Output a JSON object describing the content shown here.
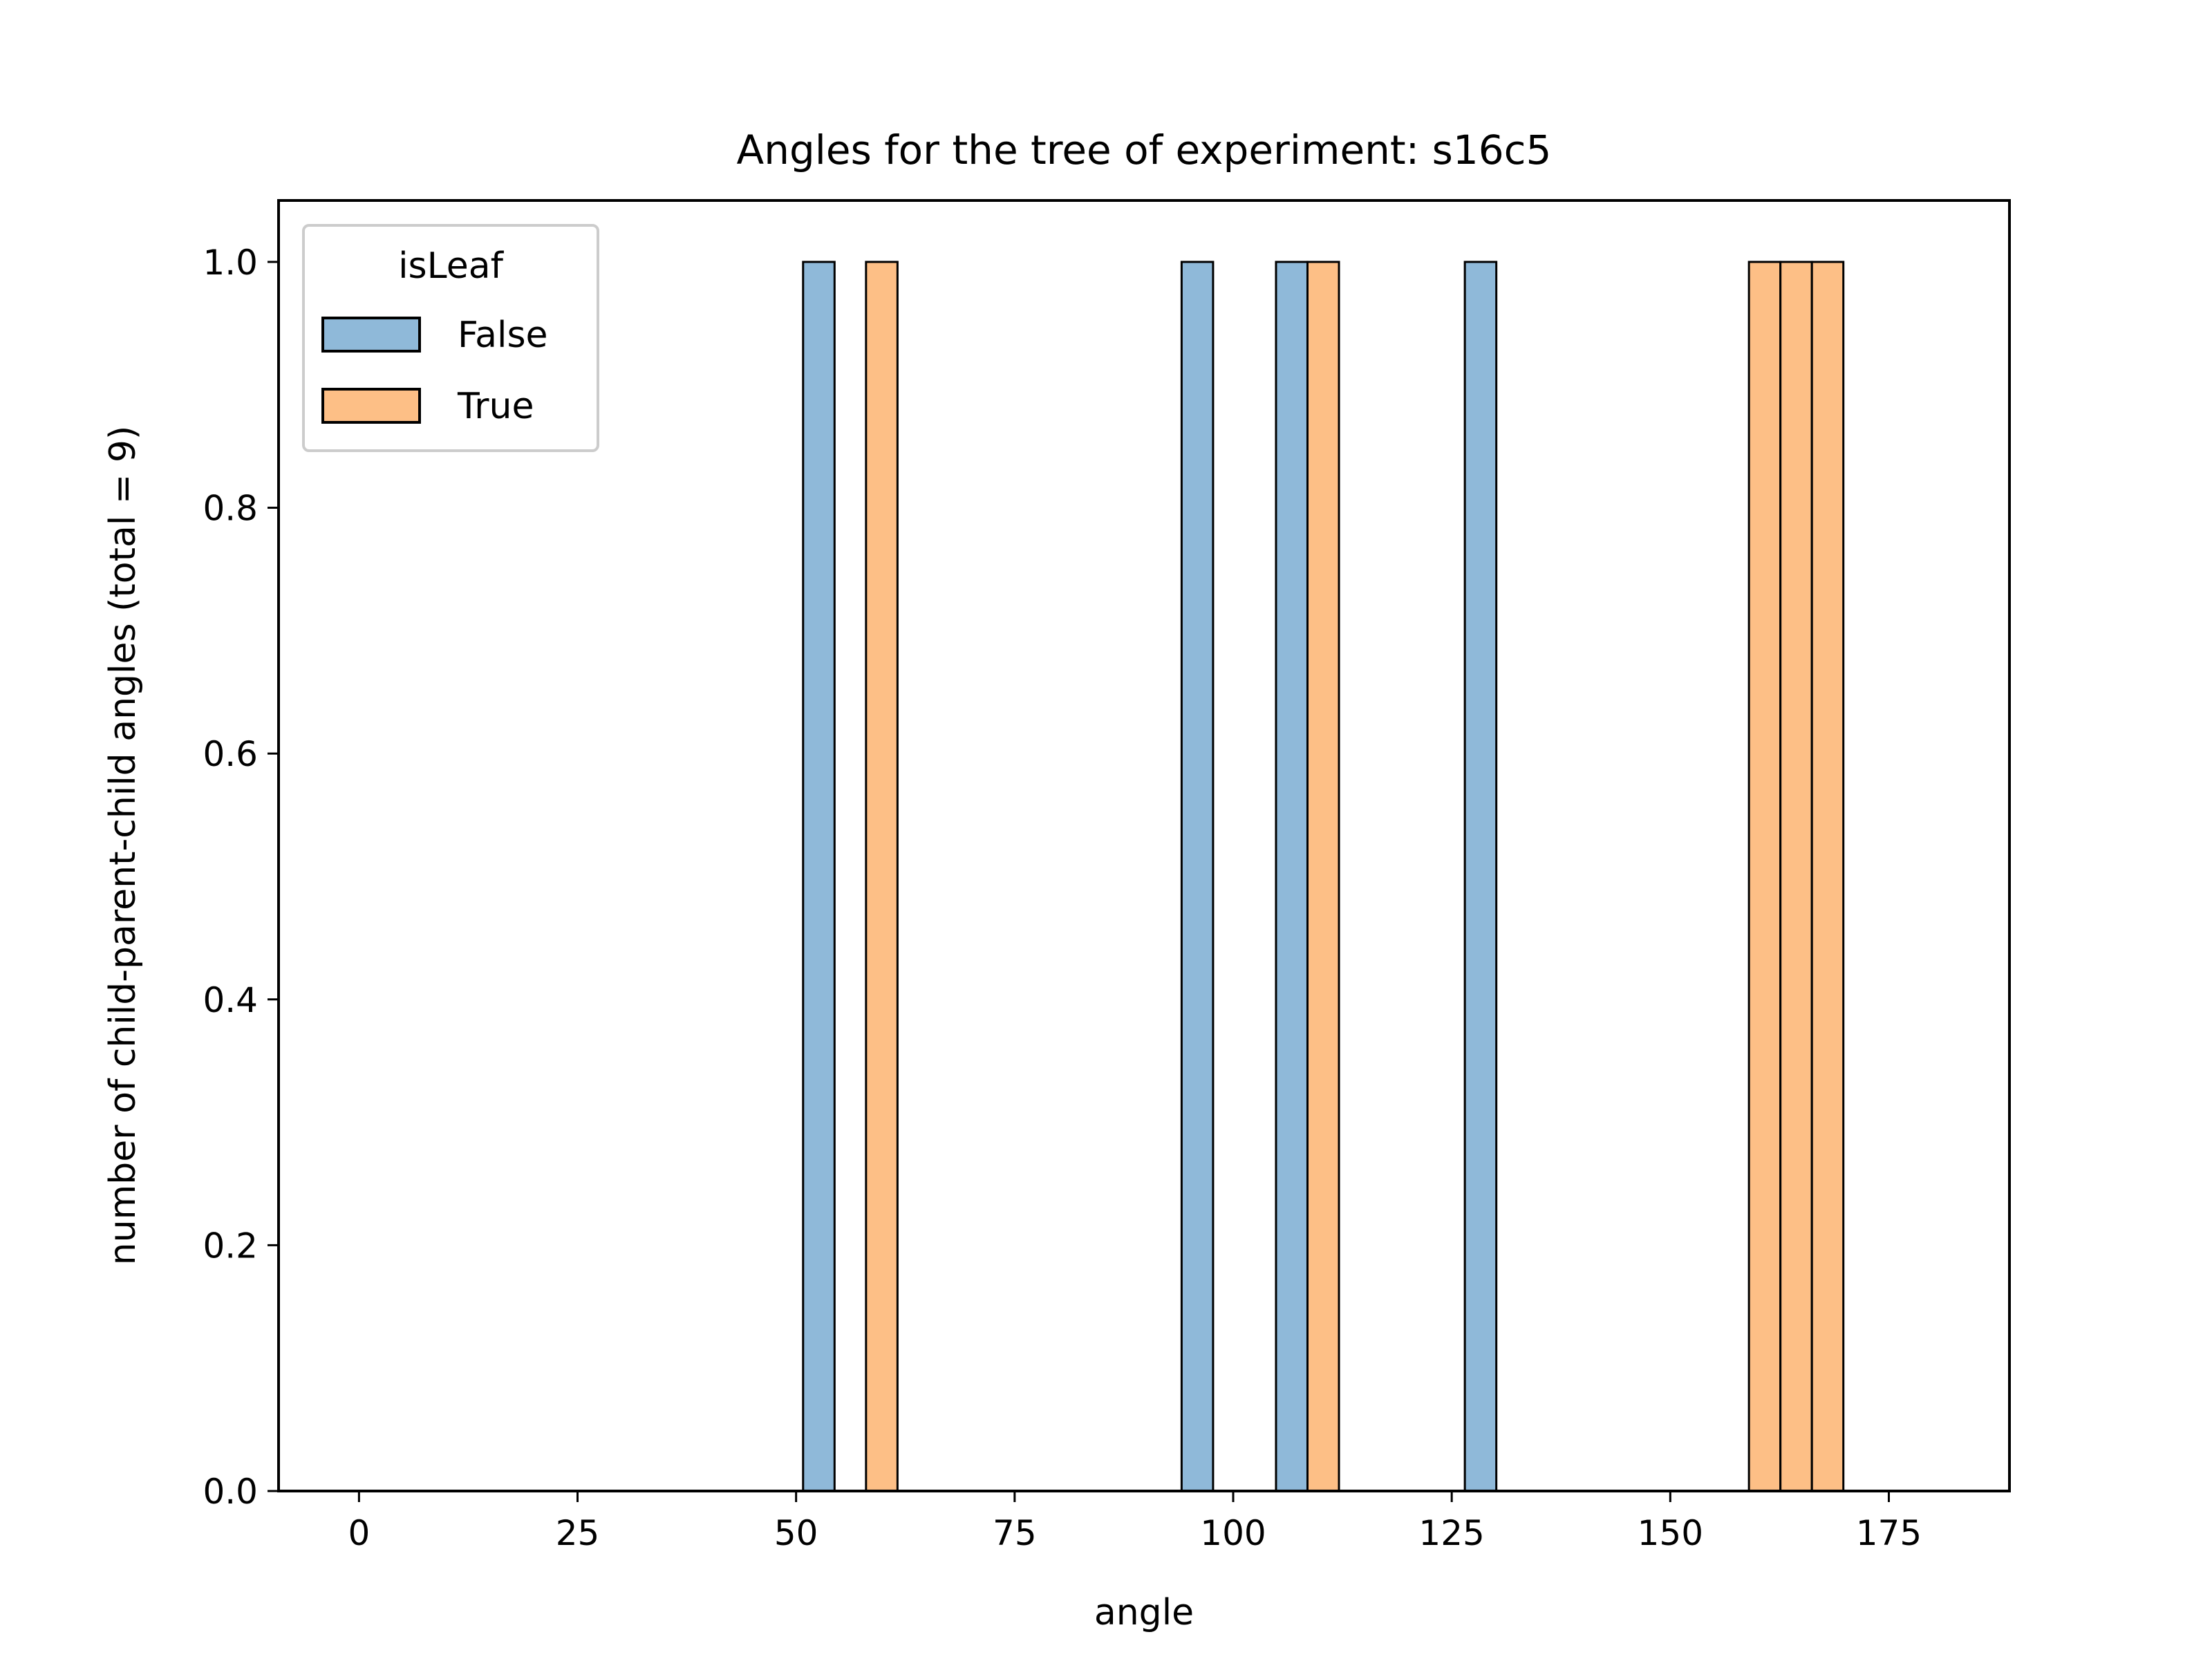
{
  "chart_data": {
    "type": "bar",
    "title": "Angles for the tree of experiment: s16c5",
    "xlabel": "angle",
    "ylabel": "number of child-parent-child angles (total = 9)",
    "xlim": [
      -9.2,
      188.8
    ],
    "ylim": [
      0,
      1.05
    ],
    "x_ticks": [
      0,
      25,
      50,
      75,
      100,
      125,
      150,
      175
    ],
    "y_ticks": [
      "0.0",
      "0.2",
      "0.4",
      "0.6",
      "0.8",
      "1.0"
    ],
    "grid": false,
    "legend": {
      "title": "isLeaf",
      "placement": "top-left"
    },
    "series": [
      {
        "name": "False",
        "color": "#8fb9d9",
        "bins": [
          {
            "x0": 50.8,
            "x1": 54.4,
            "value": 1
          },
          {
            "x0": 94.1,
            "x1": 97.7,
            "value": 1
          },
          {
            "x0": 104.9,
            "x1": 108.5,
            "value": 1
          },
          {
            "x0": 126.5,
            "x1": 130.1,
            "value": 1
          }
        ]
      },
      {
        "name": "True",
        "color": "#fdbf86",
        "bins": [
          {
            "x0": 58.0,
            "x1": 61.6,
            "value": 1
          },
          {
            "x0": 108.5,
            "x1": 112.1,
            "value": 1
          },
          {
            "x0": 159.0,
            "x1": 162.6,
            "value": 1
          },
          {
            "x0": 162.6,
            "x1": 166.2,
            "value": 1
          },
          {
            "x0": 166.2,
            "x1": 169.8,
            "value": 1
          }
        ]
      }
    ]
  }
}
